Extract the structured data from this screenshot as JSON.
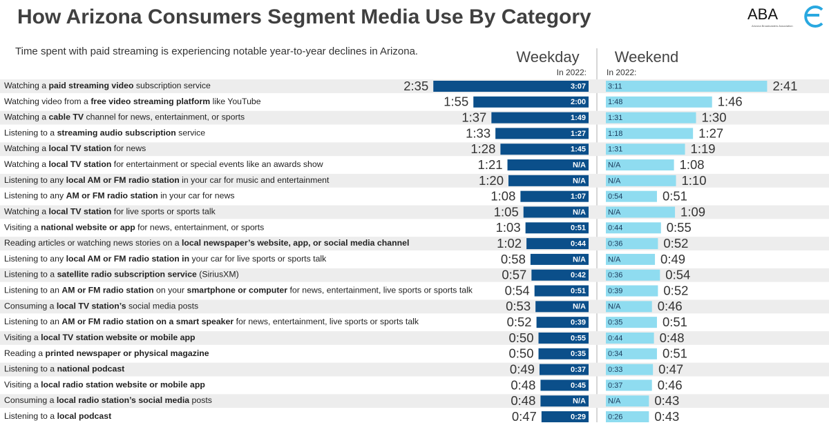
{
  "chart_data": {
    "type": "butterfly-bar",
    "title": "How Arizona Consumers Segment Media Use By Category",
    "subtitle": "Time spent with paid streaming is experiencing notable year-to-year declines in Arizona.",
    "logo": {
      "text": "ABA",
      "caption": "Arizona Broadcasters Association"
    },
    "categories": [
      [
        "Watching a ",
        "paid streaming video",
        " subscription service"
      ],
      [
        "Watching video from a ",
        "free video streaming platform",
        " like YouTube"
      ],
      [
        "Watching a ",
        "cable TV",
        " channel for news, entertainment, or sports"
      ],
      [
        "Listening to a ",
        "streaming audio subscription",
        " service"
      ],
      [
        "Watching a ",
        "local TV station",
        " for news"
      ],
      [
        "Watching a ",
        "local TV station",
        " for entertainment or special events like an awards show"
      ],
      [
        "Listening to any ",
        "local AM or FM radio station",
        " in your car for music and entertainment"
      ],
      [
        "Listening to any ",
        "AM or FM radio station",
        " in your car for news"
      ],
      [
        "Watching a ",
        "local TV station",
        " for live sports or sports talk"
      ],
      [
        "Visiting a ",
        "national website or app",
        " for news, entertainment, or sports"
      ],
      [
        "Reading articles or watching news stories on a ",
        "local newspaper’s website, app, or social media channel"
      ],
      [
        "Listening to any ",
        "local AM or FM radio station in",
        " your car for live sports or sports talk"
      ],
      [
        "Listening to a ",
        "satellite radio subscription service",
        " (SiriusXM)"
      ],
      [
        "Listening to an ",
        "AM or FM radio station",
        " on your ",
        "smartphone or computer",
        " for news, entertainment, live sports or sports talk"
      ],
      [
        "Consuming a ",
        "local TV station’s",
        " social media posts"
      ],
      [
        "Listening to an ",
        "AM or FM radio station on a smart speaker",
        " for news, entertainment, live sports or sports talk"
      ],
      [
        "Visiting a ",
        "local TV station website or mobile app"
      ],
      [
        "Reading a ",
        "printed newspaper or physical magazine"
      ],
      [
        "Listening to a ",
        "national podcast"
      ],
      [
        "Visiting a ",
        "local radio station website or mobile app"
      ],
      [
        "Consuming a ",
        "local radio station’s social media",
        " posts"
      ],
      [
        "Listening to a ",
        "local podcast"
      ]
    ],
    "prior_header": "In 2022:",
    "series": [
      {
        "name": "Weekday",
        "color": "#0b4f8a",
        "values": [
          155,
          115,
          97,
          93,
          88,
          81,
          80,
          68,
          65,
          63,
          62,
          58,
          57,
          54,
          53,
          52,
          50,
          50,
          49,
          48,
          48,
          47
        ],
        "value_labels": [
          "2:35",
          "1:55",
          "1:37",
          "1:33",
          "1:28",
          "1:21",
          "1:20",
          "1:08",
          "1:05",
          "1:03",
          "1:02",
          "0:58",
          "0:57",
          "0:54",
          "0:53",
          "0:52",
          "0:50",
          "0:50",
          "0:49",
          "0:48",
          "0:48",
          "0:47"
        ],
        "prior": [
          "3:07",
          "2:00",
          "1:49",
          "1:27",
          "1:45",
          "N/A",
          "N/A",
          "1:07",
          "N/A",
          "0:51",
          "0:44",
          "N/A",
          "0:42",
          "0:51",
          "N/A",
          "0:39",
          "0:55",
          "0:35",
          "0:37",
          "0:45",
          "N/A",
          "0:29"
        ]
      },
      {
        "name": "Weekend",
        "color": "#8fdcf0",
        "values": [
          161,
          106,
          90,
          87,
          79,
          68,
          70,
          51,
          69,
          55,
          52,
          49,
          54,
          52,
          46,
          51,
          48,
          51,
          47,
          46,
          43,
          43
        ],
        "value_labels": [
          "2:41",
          "1:46",
          "1:30",
          "1:27",
          "1:19",
          "1:08",
          "1:10",
          "0:51",
          "1:09",
          "0:55",
          "0:52",
          "0:49",
          "0:54",
          "0:52",
          "0:46",
          "0:51",
          "0:48",
          "0:51",
          "0:47",
          "0:46",
          "0:43",
          "0:43"
        ],
        "prior": [
          "3:11",
          "1:48",
          "1:31",
          "1:18",
          "1:31",
          "N/A",
          "N/A",
          "0:54",
          "N/A",
          "0:44",
          "0:36",
          "N/A",
          "0:36",
          "0:39",
          "N/A",
          "0:35",
          "0:44",
          "0:34",
          "0:33",
          "0:37",
          "N/A",
          "0:26"
        ]
      }
    ]
  }
}
